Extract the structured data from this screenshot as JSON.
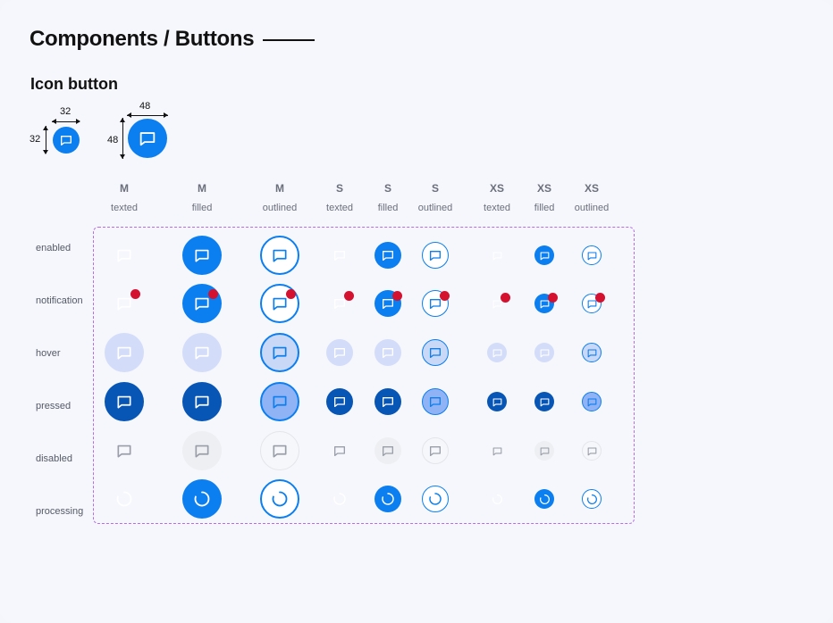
{
  "page": {
    "title": "Components / Buttons",
    "section_title": "Icon button"
  },
  "size_specs": [
    {
      "id": "small",
      "width_label": "32",
      "height_label": "32"
    },
    {
      "id": "large",
      "width_label": "48",
      "height_label": "48"
    }
  ],
  "columns": [
    {
      "size": "M",
      "variant": "texted"
    },
    {
      "size": "M",
      "variant": "filled"
    },
    {
      "size": "M",
      "variant": "outlined"
    },
    {
      "size": "S",
      "variant": "texted"
    },
    {
      "size": "S",
      "variant": "filled"
    },
    {
      "size": "S",
      "variant": "outlined"
    },
    {
      "size": "XS",
      "variant": "texted"
    },
    {
      "size": "XS",
      "variant": "filled"
    },
    {
      "size": "XS",
      "variant": "outlined"
    }
  ],
  "rows": [
    {
      "state": "enabled"
    },
    {
      "state": "notification"
    },
    {
      "state": "hover"
    },
    {
      "state": "pressed"
    },
    {
      "state": "disabled"
    },
    {
      "state": "processing"
    }
  ],
  "colors": {
    "primary": "#0b7ef0",
    "pressed": "#0756b5",
    "hover_bg": "#d3dcf9",
    "hover_outlined_bg": "#c9d8f7",
    "pressed_outlined_bg": "#8fb3f4",
    "disabled_icon": "#9a9ea8",
    "disabled_bg": "#eeeff2",
    "notification_dot": "#d41230",
    "frame_dashed": "#b36ee6",
    "icon_white": "#ffffff"
  },
  "icons": {
    "content": "chat-bubble-icon",
    "processing": "spinner-icon"
  }
}
